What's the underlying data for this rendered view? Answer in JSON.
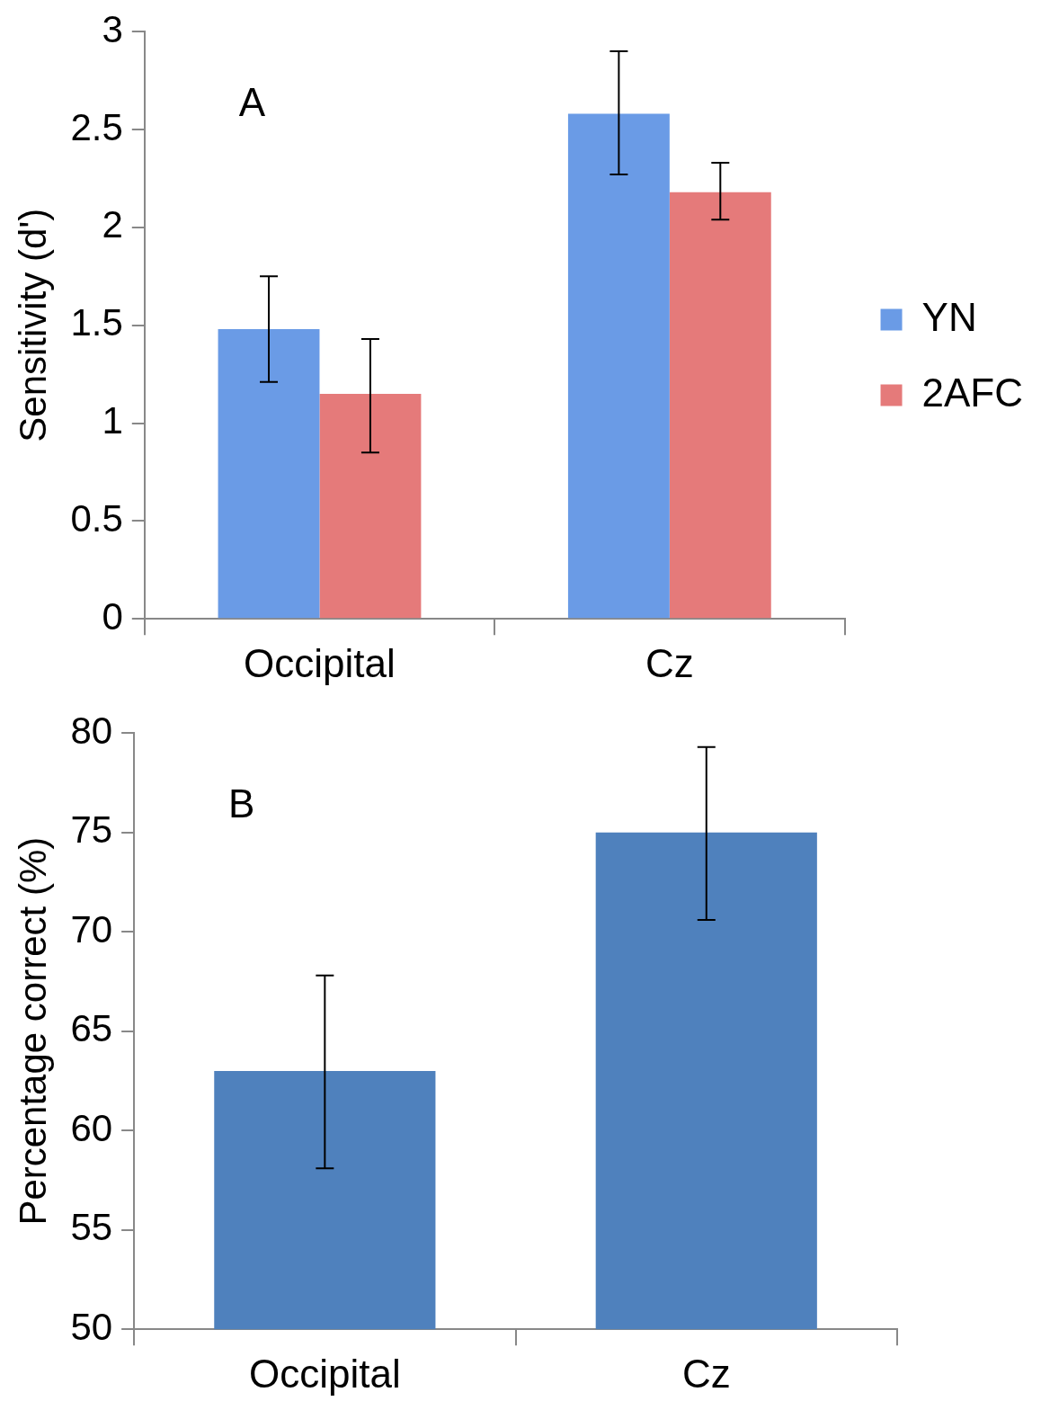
{
  "chart_data": [
    {
      "type": "bar",
      "ylabel": "Sensitivity (d')",
      "annotations": [
        "A"
      ],
      "categories": [
        "Occipital",
        "Cz"
      ],
      "ylim": [
        0,
        3
      ],
      "yticks": [
        0,
        0.5,
        1,
        1.5,
        2,
        2.5,
        3
      ],
      "grid": false,
      "legend": "right",
      "series": [
        {
          "name": "YN",
          "color": "#6a9be6",
          "values": [
            1.48,
            2.58
          ],
          "errors": [
            [
              1.21,
              1.75
            ],
            [
              2.27,
              2.9
            ]
          ]
        },
        {
          "name": "2AFC",
          "color": "#e57a7a",
          "values": [
            1.15,
            2.18
          ],
          "errors": [
            [
              0.85,
              1.43
            ],
            [
              2.04,
              2.33
            ]
          ]
        }
      ]
    },
    {
      "type": "bar",
      "ylabel": "Percentage correct (%)",
      "annotations": [
        "B"
      ],
      "categories": [
        "Occipital",
        "Cz"
      ],
      "ylim": [
        50,
        80
      ],
      "yticks": [
        50,
        55,
        60,
        65,
        70,
        75,
        80
      ],
      "grid": false,
      "legend": false,
      "series": [
        {
          "color": "#4f81bd",
          "values": [
            63.0,
            75.0
          ],
          "errors": [
            [
              58.1,
              67.8
            ],
            [
              70.6,
              79.3
            ]
          ]
        }
      ]
    }
  ]
}
